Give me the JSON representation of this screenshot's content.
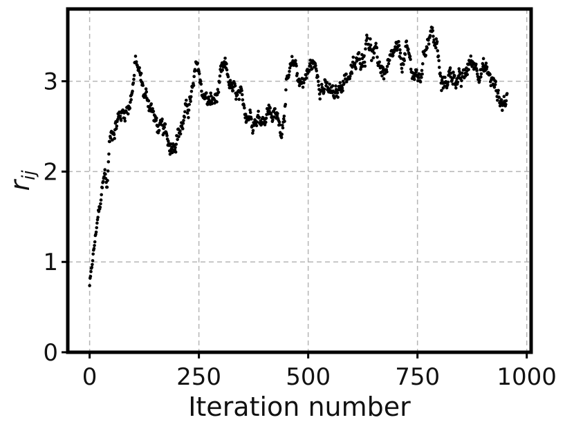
{
  "chart_data": {
    "type": "scatter",
    "title": "",
    "xlabel": "Iteration number",
    "ylabel": {
      "base": "r",
      "sub": "ij"
    },
    "xlim": [
      -50,
      1010
    ],
    "ylim": [
      0,
      3.8
    ],
    "xticks": [
      0,
      250,
      500,
      750,
      1000
    ],
    "xtick_labels": [
      "0",
      "250",
      "500",
      "750",
      "1000"
    ],
    "yticks": [
      0,
      1,
      2,
      3
    ],
    "ytick_labels": [
      "0",
      "1",
      "2",
      "3"
    ],
    "grid": true,
    "marker_color": "#000000",
    "series": [
      {
        "points_description_keypoints": [
          [
            0,
            0.75
          ],
          [
            5,
            0.95
          ],
          [
            10,
            1.15
          ],
          [
            15,
            1.35
          ],
          [
            20,
            1.55
          ],
          [
            25,
            1.65
          ],
          [
            30,
            1.9
          ],
          [
            35,
            2.0
          ],
          [
            40,
            1.8
          ],
          [
            45,
            2.3
          ],
          [
            55,
            2.5
          ],
          [
            65,
            2.6
          ],
          [
            75,
            2.65
          ],
          [
            90,
            2.75
          ],
          [
            100,
            3.0
          ],
          [
            105,
            3.2
          ],
          [
            115,
            3.05
          ],
          [
            125,
            2.85
          ],
          [
            140,
            2.75
          ],
          [
            150,
            2.55
          ],
          [
            160,
            2.45
          ],
          [
            170,
            2.4
          ],
          [
            185,
            2.3
          ],
          [
            200,
            2.45
          ],
          [
            210,
            2.5
          ],
          [
            225,
            2.7
          ],
          [
            240,
            2.95
          ],
          [
            245,
            3.2
          ],
          [
            260,
            2.85
          ],
          [
            275,
            2.75
          ],
          [
            290,
            2.8
          ],
          [
            300,
            3.0
          ],
          [
            310,
            3.1
          ],
          [
            330,
            2.85
          ],
          [
            350,
            2.7
          ],
          [
            370,
            2.65
          ],
          [
            390,
            2.6
          ],
          [
            410,
            2.7
          ],
          [
            425,
            2.6
          ],
          [
            440,
            2.5
          ],
          [
            450,
            2.95
          ],
          [
            460,
            3.05
          ],
          [
            470,
            3.2
          ],
          [
            480,
            3.0
          ],
          [
            495,
            3.05
          ],
          [
            510,
            3.2
          ],
          [
            520,
            3.1
          ],
          [
            535,
            2.95
          ],
          [
            550,
            2.85
          ],
          [
            565,
            2.8
          ],
          [
            580,
            3.05
          ],
          [
            600,
            3.1
          ],
          [
            615,
            3.2
          ],
          [
            630,
            3.35
          ],
          [
            635,
            3.6
          ],
          [
            645,
            3.35
          ],
          [
            660,
            3.2
          ],
          [
            675,
            3.1
          ],
          [
            690,
            3.15
          ],
          [
            700,
            3.3
          ],
          [
            715,
            3.2
          ],
          [
            725,
            3.3
          ],
          [
            740,
            3.1
          ],
          [
            755,
            3.0
          ],
          [
            770,
            3.45
          ],
          [
            780,
            3.6
          ],
          [
            795,
            3.35
          ],
          [
            805,
            2.9
          ],
          [
            820,
            3.05
          ],
          [
            835,
            3.1
          ],
          [
            850,
            2.95
          ],
          [
            870,
            3.2
          ],
          [
            885,
            3.2
          ],
          [
            900,
            3.15
          ],
          [
            915,
            3.05
          ],
          [
            930,
            2.9
          ],
          [
            945,
            2.75
          ],
          [
            955,
            2.85
          ]
        ]
      }
    ]
  }
}
